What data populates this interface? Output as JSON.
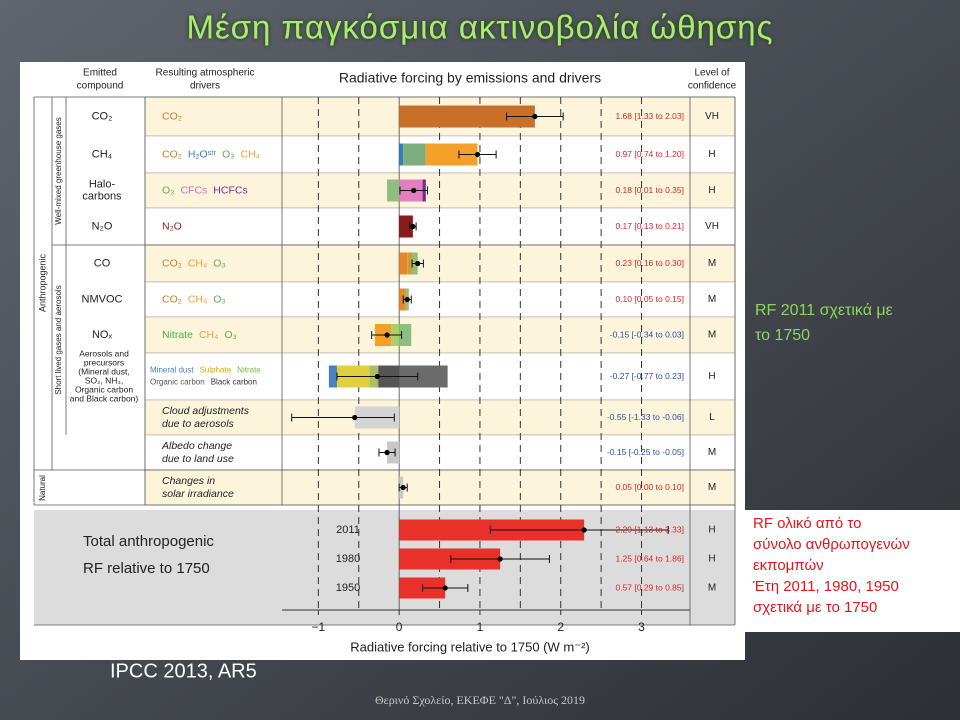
{
  "title": "Μέση παγκόσμια ακτινοβολία ώθησης",
  "side_note": [
    "RF 2011 σχετικά με",
    "το 1750"
  ],
  "red_note": [
    "RF ολικό από το",
    "σύνολο ανθρωπογενών",
    "εκπομπών",
    "Έτη  2011, 1980, 1950",
    "σχετικά με το 1750"
  ],
  "source": "IPCC 2013, AR5",
  "footer": "Θερινό Σχολείο, ΕΚΕΦΕ \"Δ\", Ιούλιος 2019",
  "chart_data": {
    "type": "bar",
    "title": "Radiative forcing by emissions and drivers",
    "headers": {
      "compound": [
        "Emitted",
        "compound"
      ],
      "drivers": [
        "Resulting atmospheric",
        "drivers"
      ],
      "confidence": [
        "Level of",
        "confidence"
      ]
    },
    "groups": {
      "anthropogenic": "Anthropogenic",
      "natural": "Natural",
      "well_mixed": "Well-mixed greenhouse gases",
      "short_lived": "Short lived gases and aerosols",
      "total": [
        "Total anthropogenic",
        "RF relative to 1750"
      ]
    },
    "x_label": "Radiative forcing relative to 1750 (W m⁻²)",
    "categories": [
      [
        "CO₂"
      ],
      [
        "CH₄"
      ],
      [
        "Halo-",
        "carbons"
      ],
      [
        "N₂O"
      ],
      [
        "CO"
      ],
      [
        "NMVOC"
      ],
      [
        "NOₓ"
      ],
      [
        "Aerosols and",
        "precursors",
        "(Mineral dust,",
        "SO₂, NH₃,",
        "Organic carbon",
        "and Black carbon)"
      ],
      null,
      null,
      null,
      [
        "2011"
      ],
      [
        "1980"
      ],
      [
        "1950"
      ]
    ],
    "drivers": [
      [
        [
          {
            "text": "CO₂",
            "color": "#c8792e"
          }
        ]
      ],
      [
        [
          {
            "text": "CO₂",
            "color": "#c8792e"
          },
          {
            "text": "H₂Oˢᵗʳ",
            "color": "#2f7fc1"
          },
          {
            "text": "O₃",
            "color": "#6aa84f"
          },
          {
            "text": "CH₄",
            "color": "#f0a030"
          }
        ]
      ],
      [
        [
          {
            "text": "O₃",
            "color": "#6aa84f"
          },
          {
            "text": "CFCs",
            "color": "#d070b0"
          },
          {
            "text": "HCFCs",
            "color": "#7b2a8a"
          }
        ]
      ],
      [
        [
          {
            "text": "N₂O",
            "color": "#8b1a1a"
          }
        ]
      ],
      [
        [
          {
            "text": "CO₂",
            "color": "#c8792e"
          },
          {
            "text": "CH₄",
            "color": "#f0a030"
          },
          {
            "text": "O₃",
            "color": "#6aa84f"
          }
        ]
      ],
      [
        [
          {
            "text": "CO₂",
            "color": "#c8792e"
          },
          {
            "text": "CH₄",
            "color": "#f0a030"
          },
          {
            "text": "O₃",
            "color": "#6aa84f"
          }
        ]
      ],
      [
        [
          {
            "text": "Nitrate",
            "color": "#4cae4c"
          },
          {
            "text": "CH₄",
            "color": "#f0a030"
          },
          {
            "text": "O₃",
            "color": "#6aa84f"
          }
        ]
      ],
      [
        [
          {
            "text": "Mineral dust",
            "color": "#4a7fc0"
          },
          {
            "text": "Sulphate",
            "color": "#d4b000"
          },
          {
            "text": "Nitrate",
            "color": "#7ab648"
          }
        ],
        [
          {
            "text": "Organic carbon",
            "color": "#555555"
          },
          {
            "text": "Black carbon",
            "color": "#333333"
          }
        ]
      ],
      [
        [
          {
            "text": "Cloud adjustments",
            "color": "#222222"
          }
        ],
        [
          {
            "text": "due to aerosols",
            "color": "#222222"
          }
        ]
      ],
      [
        [
          {
            "text": "Albedo change",
            "color": "#222222"
          }
        ],
        [
          {
            "text": "due to land use",
            "color": "#222222"
          }
        ]
      ],
      [
        [
          {
            "text": "Changes in",
            "color": "#222222"
          }
        ],
        [
          {
            "text": "solar irradiance",
            "color": "#222222"
          }
        ]
      ],
      null,
      null,
      null
    ],
    "values": [
      1.68,
      0.97,
      0.18,
      0.17,
      0.23,
      0.1,
      -0.15,
      -0.27,
      -0.55,
      -0.15,
      0.05,
      2.29,
      1.25,
      0.57
    ],
    "low": [
      1.33,
      0.74,
      0.01,
      0.13,
      0.16,
      0.05,
      -0.34,
      -0.77,
      -1.33,
      -0.25,
      0.0,
      1.13,
      0.64,
      0.29
    ],
    "high": [
      2.03,
      1.2,
      0.35,
      0.21,
      0.3,
      0.15,
      0.03,
      0.23,
      -0.06,
      -0.05,
      0.1,
      3.33,
      1.86,
      0.85
    ],
    "value_labels": [
      "1.68 [1.33 to 2.03]",
      "0.97 [0.74 to 1.20]",
      "0.18 [0.01 to 0.35]",
      "0.17 [0.13 to 0.21]",
      "0.23 [0.16 to 0.30]",
      "0.10 [0.05 to 0.15]",
      "-0.15 [-0.34 to 0.03]",
      "-0.27 [-0.77 to 0.23]",
      "-0.55 [-1.33 to -0.06]",
      "-0.15 [-0.25 to -0.05]",
      "0.05 [0.00 to 0.10]",
      "2.29 [1.13 to 3.33]",
      "1.25 [0.64 to 1.86]",
      "0.57 [0.29 to 0.85]"
    ],
    "confidence": [
      "VH",
      "H",
      "H",
      "VH",
      "M",
      "M",
      "M",
      "H",
      "L",
      "M",
      "M",
      "H",
      "H",
      "M"
    ],
    "segments": [
      [
        {
          "color": "#c8702a",
          "value": 1.68
        }
      ],
      [
        {
          "color": "#2f7fc1",
          "value": 0.05
        },
        {
          "color": "#7fae7e",
          "value": 0.28
        },
        {
          "color": "#f5a028",
          "value": 0.64
        }
      ],
      [
        {
          "color": "#e37ec0",
          "value": 0.29
        },
        {
          "color": "#7b2a8a",
          "value": 0.04
        },
        {
          "color": "#8fbf80",
          "value": -0.15
        }
      ],
      [
        {
          "color": "#8b1a1a",
          "value": 0.17
        }
      ],
      [
        {
          "color": "#e8862a",
          "value": 0.1
        },
        {
          "color": "#c8a040",
          "value": 0.07
        },
        {
          "color": "#8fbf80",
          "value": 0.06
        }
      ],
      [
        {
          "color": "#e8862a",
          "value": 0.06
        },
        {
          "color": "#c8a040",
          "value": 0.03
        },
        {
          "color": "#8fbf80",
          "value": 0.03
        }
      ],
      [
        {
          "color": "#8fbf80",
          "value": 0.15
        },
        {
          "color": "#a8d070",
          "value": -0.1
        },
        {
          "color": "#f5a028",
          "value": -0.2
        }
      ],
      [
        {
          "color": "#6b6b6b",
          "value": 0.6
        },
        {
          "color": "#555555",
          "value": -0.26
        },
        {
          "color": "#a8c060",
          "value": -0.11
        },
        {
          "color": "#e0d040",
          "value": -0.4
        },
        {
          "color": "#4a7fc0",
          "value": -0.1
        }
      ],
      [
        {
          "color": "#d4d4d4",
          "value": -0.55
        }
      ],
      [
        {
          "color": "#c8c8c8",
          "value": -0.15
        }
      ],
      [
        {
          "color": "#c8c8c8",
          "value": 0.05
        }
      ],
      [
        {
          "color": "#e8312b",
          "value": 2.29
        }
      ],
      [
        {
          "color": "#e8312b",
          "value": 1.25
        }
      ],
      [
        {
          "color": "#e8312b",
          "value": 0.57
        }
      ]
    ],
    "xlim": [
      -1.45,
      3.6
    ],
    "xticks": [
      {
        "value": -1,
        "label": "−1"
      },
      0,
      1,
      2,
      3
    ],
    "xminor": [
      -0.5,
      0.5,
      1.5,
      2.5
    ],
    "grid": true
  }
}
